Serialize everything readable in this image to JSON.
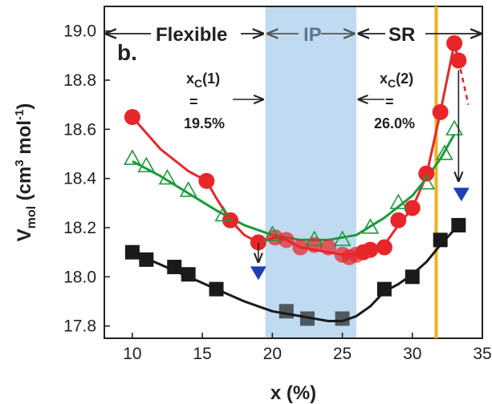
{
  "chart_data": {
    "type": "scatter",
    "panel_label": "b.",
    "xlabel": "x (%)",
    "ylabel": {
      "main": "V",
      "sub": "mol",
      "unit_open": " (cm",
      "unit_sup1": "3",
      "unit_mid": " mol",
      "unit_sup2": "-1",
      "unit_close": ")"
    },
    "xlim": [
      8,
      35
    ],
    "ylim": [
      17.75,
      19.1
    ],
    "x_ticks": [
      10,
      15,
      20,
      25,
      30,
      35
    ],
    "y_ticks": [
      17.8,
      18.0,
      18.2,
      18.4,
      18.6,
      18.8,
      19.0
    ],
    "y_tick_labels": [
      "17.8",
      "18.0",
      "18.2",
      "18.4",
      "18.6",
      "18.8",
      "19.0"
    ],
    "regions": [
      {
        "label": "Flexible",
        "from": 8,
        "to": 19.5
      },
      {
        "label": "IP",
        "from": 19.5,
        "to": 26.0,
        "shaded": true,
        "color": "#b8d6f0"
      },
      {
        "label": "SR",
        "from": 26.0,
        "to": 35
      }
    ],
    "vertical_line": {
      "x": 31.7,
      "color": "#f2b01e"
    },
    "annotations": [
      {
        "name": "xc1",
        "main": "x",
        "sub": "C",
        "paren": "(1)",
        "eq": "=",
        "value": "19.5%",
        "x": 19.5
      },
      {
        "name": "xc2",
        "main": "x",
        "sub": "C",
        "paren": "(2)",
        "eq": "=",
        "value": "26.0%",
        "x": 26.0
      }
    ],
    "series": [
      {
        "marker": "circle",
        "color": "#e8262a",
        "points": [
          [
            10,
            18.65
          ],
          [
            15.3,
            18.39
          ],
          [
            17,
            18.23
          ],
          [
            19,
            18.14
          ],
          [
            20.2,
            18.16
          ],
          [
            21,
            18.15
          ],
          [
            22,
            18.12
          ],
          [
            23,
            18.13
          ],
          [
            24,
            18.12
          ],
          [
            25,
            18.09
          ],
          [
            25.5,
            18.08
          ],
          [
            26,
            18.09
          ],
          [
            26.5,
            18.1
          ],
          [
            27,
            18.11
          ],
          [
            28,
            18.12
          ],
          [
            29,
            18.23
          ],
          [
            30,
            18.28
          ],
          [
            31,
            18.42
          ],
          [
            32,
            18.67
          ],
          [
            33,
            18.95
          ],
          [
            33.3,
            18.88
          ]
        ],
        "fit": [
          [
            10,
            18.65
          ],
          [
            12,
            18.52
          ],
          [
            14,
            18.43
          ],
          [
            15.3,
            18.39
          ],
          [
            16,
            18.32
          ],
          [
            17,
            18.23
          ],
          [
            18,
            18.17
          ],
          [
            19,
            18.14
          ],
          [
            20.2,
            18.16
          ],
          [
            21,
            18.15
          ],
          [
            22,
            18.12
          ],
          [
            23,
            18.11
          ],
          [
            24,
            18.1
          ],
          [
            25,
            18.09
          ],
          [
            26,
            18.09
          ],
          [
            27,
            18.11
          ],
          [
            28,
            18.13
          ],
          [
            29,
            18.21
          ],
          [
            30,
            18.28
          ],
          [
            31,
            18.41
          ],
          [
            32,
            18.67
          ],
          [
            33,
            18.95
          ],
          [
            33.3,
            18.88
          ]
        ]
      },
      {
        "marker": "triangle-open",
        "color": "#1a9a3a",
        "points": [
          [
            10,
            18.48
          ],
          [
            11,
            18.45
          ],
          [
            12.5,
            18.4
          ],
          [
            14,
            18.35
          ],
          [
            16.5,
            18.25
          ],
          [
            20,
            18.17
          ],
          [
            23,
            18.15
          ],
          [
            25,
            18.15
          ],
          [
            27,
            18.2
          ],
          [
            29,
            18.3
          ],
          [
            31,
            18.38
          ],
          [
            32.3,
            18.5
          ],
          [
            33,
            18.6
          ]
        ],
        "fit": [
          [
            10,
            18.47
          ],
          [
            12,
            18.41
          ],
          [
            14,
            18.34
          ],
          [
            16,
            18.27
          ],
          [
            18,
            18.21
          ],
          [
            20,
            18.17
          ],
          [
            22,
            18.15
          ],
          [
            24,
            18.15
          ],
          [
            26,
            18.17
          ],
          [
            28,
            18.24
          ],
          [
            30,
            18.33
          ],
          [
            31,
            18.4
          ],
          [
            32,
            18.48
          ],
          [
            33,
            18.58
          ]
        ]
      },
      {
        "marker": "square",
        "color": "#1a1a1a",
        "points": [
          [
            10,
            18.1
          ],
          [
            11,
            18.07
          ],
          [
            13,
            18.04
          ],
          [
            14,
            18.01
          ],
          [
            16,
            17.95
          ],
          [
            21,
            17.86
          ],
          [
            22.5,
            17.83
          ],
          [
            25,
            17.83
          ],
          [
            28,
            17.95
          ],
          [
            30,
            18.0
          ],
          [
            32,
            18.15
          ],
          [
            33.3,
            18.21
          ]
        ],
        "fit": [
          [
            10,
            18.1
          ],
          [
            12,
            18.05
          ],
          [
            14,
            18.0
          ],
          [
            16,
            17.95
          ],
          [
            18,
            17.9
          ],
          [
            20,
            17.86
          ],
          [
            22,
            17.84
          ],
          [
            24,
            17.82
          ],
          [
            25,
            17.82
          ],
          [
            26,
            17.84
          ],
          [
            27,
            17.88
          ],
          [
            28,
            17.94
          ],
          [
            29,
            17.97
          ],
          [
            30,
            18.01
          ],
          [
            31,
            18.06
          ],
          [
            32,
            18.13
          ],
          [
            33.3,
            18.21
          ]
        ]
      },
      {
        "marker": "triangle-down",
        "color": "#1f3fb5",
        "points": [
          [
            19,
            18.02
          ],
          [
            33.5,
            18.34
          ]
        ]
      }
    ],
    "shift_arrows": [
      {
        "x": 19,
        "from": 18.14,
        "to": 18.06
      },
      {
        "x": 33.3,
        "from": 18.84,
        "to": 18.39
      }
    ],
    "extrapolation": {
      "color": "#e8262a",
      "points": [
        [
          33.3,
          18.88
        ],
        [
          34,
          18.7
        ]
      ]
    }
  }
}
